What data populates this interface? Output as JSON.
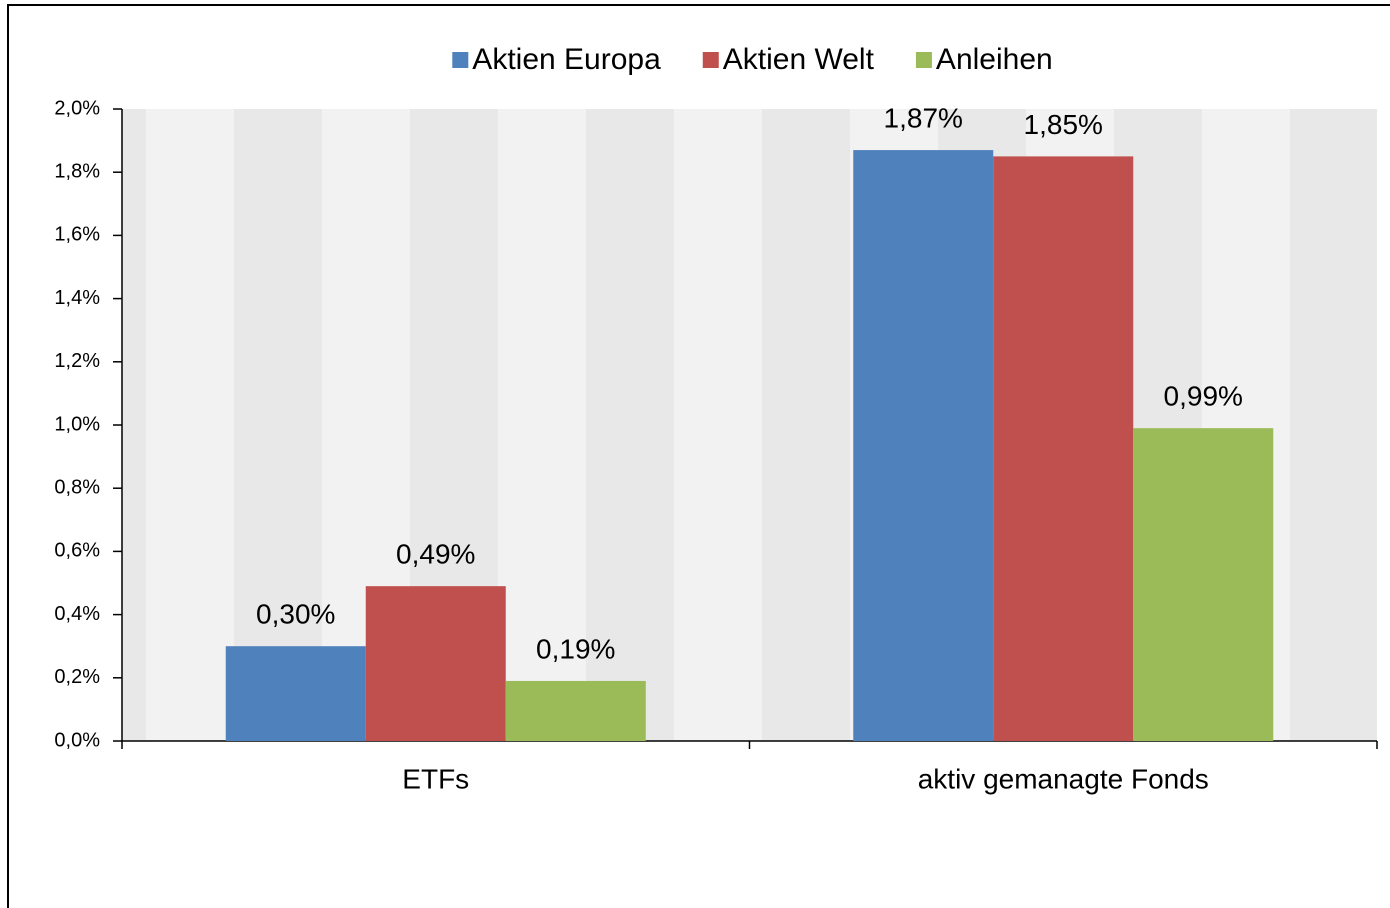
{
  "chart_data": {
    "type": "bar",
    "categories": [
      "ETFs",
      "aktiv gemanagte Fonds"
    ],
    "series": [
      {
        "name": "Aktien Europa",
        "color": "#4f81bd",
        "values": [
          0.3,
          1.87
        ],
        "value_labels": [
          "0,30%",
          "1,87%"
        ]
      },
      {
        "name": "Aktien Welt",
        "color": "#c0504d",
        "values": [
          0.49,
          1.85
        ],
        "value_labels": [
          "0,49%",
          "1,85%"
        ]
      },
      {
        "name": "Anleihen",
        "color": "#9bbb59",
        "values": [
          0.19,
          0.99
        ],
        "value_labels": [
          "0,19%",
          "0,99%"
        ]
      }
    ],
    "ylim": [
      0,
      2.0
    ],
    "yticks": [
      {
        "value": 0,
        "label": "0,0%"
      },
      {
        "value": 0.2,
        "label": "0,2%"
      },
      {
        "value": 0.4,
        "label": "0,4%"
      },
      {
        "value": 0.6,
        "label": "0,6%"
      },
      {
        "value": 0.8,
        "label": "0,8%"
      },
      {
        "value": 1.0,
        "label": "1,0%"
      },
      {
        "value": 1.2,
        "label": "1,2%"
      },
      {
        "value": 1.4,
        "label": "1,4%"
      },
      {
        "value": 1.6,
        "label": "1,6%"
      },
      {
        "value": 1.8,
        "label": "1,8%"
      },
      {
        "value": 2.0,
        "label": "2,0%"
      }
    ],
    "legend": "top"
  }
}
